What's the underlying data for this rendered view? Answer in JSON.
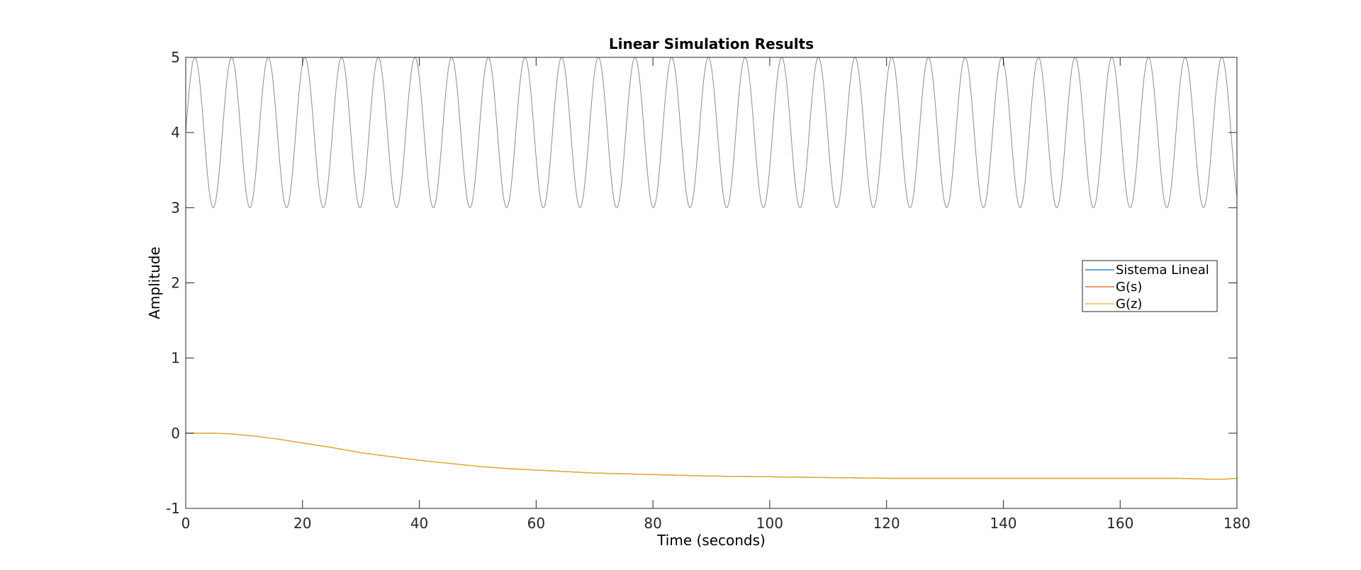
{
  "chart_data": {
    "type": "line",
    "title": "Linear Simulation Results",
    "xlabel": "Time (seconds)",
    "ylabel": "Amplitude",
    "xlim": [
      0,
      180
    ],
    "ylim": [
      -1,
      5
    ],
    "x_ticks": [
      0,
      20,
      40,
      60,
      80,
      100,
      120,
      140,
      160,
      180
    ],
    "y_ticks": [
      -1,
      0,
      1,
      2,
      3,
      4,
      5
    ],
    "grid": false,
    "legend_position": "right",
    "input_signal": {
      "color": "#8c8c8c",
      "description_values": {
        "offset": 4,
        "amplitude": 1,
        "period_s": 6.28,
        "t_start": 0,
        "t_end": 180
      }
    },
    "series": [
      {
        "name": "Sistema Lineal",
        "color": "#0072bd",
        "x": [
          0,
          5,
          8,
          12,
          16,
          20,
          25,
          30,
          35,
          40,
          45,
          50,
          55,
          60,
          65,
          70,
          75,
          80,
          90,
          100,
          110,
          120,
          130,
          140,
          150,
          160,
          170,
          175,
          178,
          180
        ],
        "y": [
          0,
          0,
          -0.01,
          -0.04,
          -0.08,
          -0.13,
          -0.19,
          -0.26,
          -0.31,
          -0.36,
          -0.4,
          -0.44,
          -0.47,
          -0.49,
          -0.51,
          -0.53,
          -0.54,
          -0.55,
          -0.57,
          -0.58,
          -0.59,
          -0.6,
          -0.6,
          -0.6,
          -0.6,
          -0.6,
          -0.6,
          -0.61,
          -0.61,
          -0.6
        ]
      },
      {
        "name": "G(s)",
        "color": "#d95319",
        "x": [
          0,
          5,
          8,
          12,
          16,
          20,
          25,
          30,
          35,
          40,
          45,
          50,
          55,
          60,
          65,
          70,
          75,
          80,
          90,
          100,
          110,
          120,
          130,
          140,
          150,
          160,
          170,
          175,
          178,
          180
        ],
        "y": [
          0,
          0,
          -0.01,
          -0.04,
          -0.08,
          -0.13,
          -0.19,
          -0.26,
          -0.31,
          -0.36,
          -0.4,
          -0.44,
          -0.47,
          -0.49,
          -0.51,
          -0.53,
          -0.54,
          -0.55,
          -0.57,
          -0.58,
          -0.59,
          -0.6,
          -0.6,
          -0.6,
          -0.6,
          -0.6,
          -0.6,
          -0.61,
          -0.61,
          -0.6
        ]
      },
      {
        "name": "G(z)",
        "color": "#edb120",
        "x": [
          0,
          5,
          8,
          12,
          16,
          20,
          25,
          30,
          35,
          40,
          45,
          50,
          55,
          60,
          65,
          70,
          75,
          80,
          90,
          100,
          110,
          120,
          130,
          140,
          150,
          160,
          170,
          175,
          178,
          180
        ],
        "y": [
          0,
          0,
          -0.01,
          -0.04,
          -0.08,
          -0.13,
          -0.19,
          -0.26,
          -0.31,
          -0.36,
          -0.4,
          -0.44,
          -0.47,
          -0.49,
          -0.51,
          -0.53,
          -0.54,
          -0.55,
          -0.57,
          -0.58,
          -0.59,
          -0.6,
          -0.6,
          -0.6,
          -0.6,
          -0.6,
          -0.6,
          -0.61,
          -0.61,
          -0.6
        ]
      }
    ]
  }
}
